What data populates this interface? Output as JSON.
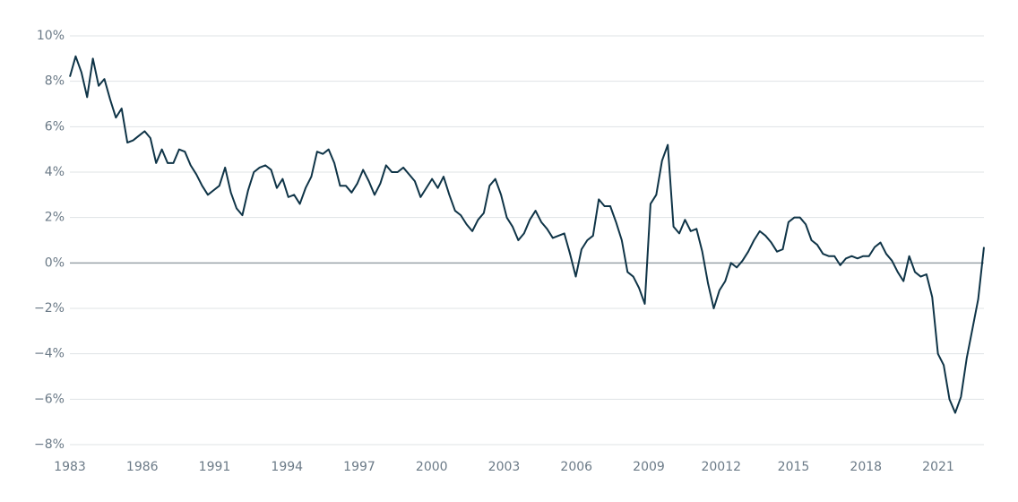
{
  "chart_data": {
    "type": "line",
    "color": "#0f3447",
    "grid": true,
    "x_labels": [
      "1983",
      "1986",
      "1991",
      "1994",
      "1997",
      "2000",
      "2003",
      "2006",
      "2009",
      "20012",
      "2015",
      "2018",
      "2021"
    ],
    "xlim": [
      1983,
      2022.75
    ],
    "ylim": [
      -8,
      10
    ],
    "yticks": [
      {
        "value": -8,
        "label": "−8%"
      },
      {
        "value": -6,
        "label": "−6%"
      },
      {
        "value": -4,
        "label": "−4%"
      },
      {
        "value": -2,
        "label": "−2%"
      },
      {
        "value": 0,
        "label": "0%"
      },
      {
        "value": 2,
        "label": "2%"
      },
      {
        "value": 4,
        "label": "4%"
      },
      {
        "value": 6,
        "label": "6%"
      },
      {
        "value": 8,
        "label": "8%"
      },
      {
        "value": 10,
        "label": "10%"
      }
    ],
    "x": [
      1983,
      1983.25,
      1983.5,
      1983.75,
      1984,
      1984.25,
      1984.5,
      1984.75,
      1985,
      1985.25,
      1985.5,
      1985.75,
      1986,
      1986.25,
      1986.5,
      1986.75,
      1987,
      1987.25,
      1987.5,
      1987.75,
      1988,
      1988.25,
      1988.5,
      1988.75,
      1989,
      1989.25,
      1989.5,
      1989.75,
      1990,
      1990.25,
      1990.5,
      1990.75,
      1991,
      1991.25,
      1991.5,
      1991.75,
      1992,
      1992.25,
      1992.5,
      1992.75,
      1993,
      1993.25,
      1993.5,
      1993.75,
      1994,
      1994.25,
      1994.5,
      1994.75,
      1995,
      1995.25,
      1995.5,
      1995.75,
      1996,
      1996.25,
      1996.5,
      1996.75,
      1997,
      1997.25,
      1997.5,
      1997.75,
      1998,
      1998.25,
      1998.5,
      1998.75,
      1999,
      1999.25,
      1999.5,
      1999.75,
      2000,
      2000.25,
      2000.5,
      2000.75,
      2001,
      2001.25,
      2001.5,
      2001.75,
      2002,
      2002.25,
      2002.5,
      2002.75,
      2003,
      2003.25,
      2003.5,
      2003.75,
      2004,
      2004.25,
      2004.5,
      2004.75,
      2005,
      2005.25,
      2005.5,
      2005.75,
      2006,
      2006.25,
      2006.5,
      2006.75,
      2007,
      2007.25,
      2007.5,
      2007.75,
      2008,
      2008.25,
      2008.5,
      2008.75,
      2009,
      2009.25,
      2009.5,
      2009.75,
      2010,
      2010.25,
      2010.5,
      2010.75,
      2011,
      2011.25,
      2011.5,
      2011.75,
      2012,
      2012.25,
      2012.5,
      2012.75,
      2013,
      2013.25,
      2013.5,
      2013.75,
      2014,
      2014.25,
      2014.5,
      2014.75,
      2015,
      2015.25,
      2015.5,
      2015.75,
      2016,
      2016.25,
      2016.5,
      2016.75,
      2017,
      2017.25,
      2017.5,
      2017.75,
      2018,
      2018.25,
      2018.5,
      2018.75,
      2019,
      2019.25,
      2019.5,
      2019.75,
      2020,
      2020.25,
      2020.5,
      2020.75,
      2021,
      2021.25,
      2021.5,
      2021.75,
      2022,
      2022.25,
      2022.5,
      2022.75
    ],
    "values": [
      8.2,
      9.1,
      8.4,
      7.3,
      9.0,
      7.8,
      8.1,
      7.2,
      6.4,
      6.8,
      5.3,
      5.4,
      5.6,
      5.8,
      5.5,
      4.4,
      5.0,
      4.4,
      4.4,
      5.0,
      4.9,
      4.3,
      3.9,
      3.4,
      3.0,
      3.2,
      3.4,
      4.2,
      3.1,
      2.4,
      2.1,
      3.2,
      4.0,
      4.2,
      4.3,
      4.1,
      3.3,
      3.7,
      2.9,
      3.0,
      2.6,
      3.3,
      3.8,
      4.9,
      4.8,
      5.0,
      4.4,
      3.4,
      3.4,
      3.1,
      3.5,
      4.1,
      3.6,
      3.0,
      3.5,
      4.3,
      4.0,
      4.0,
      4.2,
      3.9,
      3.6,
      2.9,
      3.3,
      3.7,
      3.3,
      3.8,
      3.0,
      2.3,
      2.1,
      1.7,
      1.4,
      1.9,
      2.2,
      3.4,
      3.7,
      3.0,
      2.0,
      1.6,
      1.0,
      1.3,
      1.9,
      2.3,
      1.8,
      1.5,
      1.1,
      1.2,
      1.3,
      0.4,
      -0.6,
      0.6,
      1.0,
      1.2,
      2.8,
      2.5,
      2.5,
      1.8,
      1.0,
      -0.4,
      -0.6,
      -1.1,
      -1.8,
      2.6,
      3.0,
      4.5,
      5.2,
      1.6,
      1.3,
      1.9,
      1.4,
      1.5,
      0.5,
      -0.9,
      -2.0,
      -1.2,
      -0.8,
      0.0,
      -0.2,
      0.1,
      0.5,
      1.0,
      1.4,
      1.2,
      0.9,
      0.5,
      0.6,
      1.8,
      2.0,
      2.0,
      1.7,
      1.0,
      0.8,
      0.4,
      0.3,
      0.3,
      -0.1,
      0.2,
      0.3,
      0.2,
      0.3,
      0.3,
      0.7,
      0.9,
      0.4,
      0.1,
      -0.4,
      -0.8,
      0.3,
      -0.4,
      -0.6,
      -0.5,
      -1.5,
      -4.0,
      -4.5,
      -6.0,
      -6.6,
      -5.9,
      -4.2,
      -2.9,
      -1.6,
      0.7
    ]
  }
}
